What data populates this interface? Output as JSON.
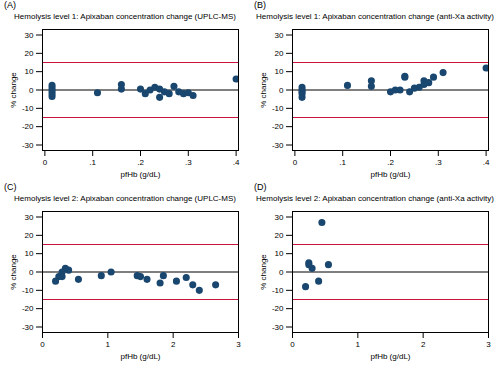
{
  "chart_data": [
    {
      "type": "scatter",
      "panel": "(A)",
      "title": "Hemolysis level 1: Apixaban concentration change (UPLC-MS)",
      "x_label": "pfHb (g/dL)",
      "y_label": "% change",
      "xlim": [
        -0.005,
        0.405
      ],
      "xticks": [
        0,
        {
          "value": 0.1,
          "label": ".1"
        },
        {
          "value": 0.2,
          "label": ".2"
        },
        {
          "value": 0.3,
          "label": ".3"
        },
        {
          "value": 0.4,
          "label": ".4"
        }
      ],
      "ylim": [
        -33,
        33
      ],
      "yticks": [
        -30,
        -20,
        -10,
        0,
        10,
        20,
        30
      ],
      "grid": false,
      "reference_lines": [
        {
          "value": 15,
          "color": "#c8143c"
        },
        {
          "value": -15,
          "color": "#c8143c"
        },
        {
          "value": 0,
          "color": "#000000"
        }
      ],
      "series": [
        {
          "name": "UPLC-MS",
          "color": "#1a476f",
          "marker": "circle",
          "x": [
            0.015,
            0.015,
            0.015,
            0.015,
            0.015,
            0.11,
            0.16,
            0.16,
            0.2,
            0.21,
            0.22,
            0.23,
            0.24,
            0.24,
            0.25,
            0.26,
            0.27,
            0.28,
            0.29,
            0.3,
            0.31,
            0.4
          ],
          "values": [
            2.5,
            1,
            -0.5,
            -2,
            -3.5,
            -1.5,
            3,
            0.5,
            0.5,
            -2,
            0,
            1.5,
            -4,
            0.5,
            -1,
            -2,
            2,
            -1,
            -2,
            -1.5,
            -3,
            6
          ]
        }
      ]
    },
    {
      "type": "scatter",
      "panel": "(B)",
      "title": "Hemolysis level 1: Apixaban concentration change (anti-Xa activity)",
      "x_label": "pfHb (g/dL)",
      "y_label": "% change",
      "xlim": [
        -0.005,
        0.405
      ],
      "xticks": [
        0,
        {
          "value": 0.1,
          "label": ".1"
        },
        {
          "value": 0.2,
          "label": ".2"
        },
        {
          "value": 0.3,
          "label": ".3"
        },
        {
          "value": 0.4,
          "label": ".4"
        }
      ],
      "ylim": [
        -33,
        33
      ],
      "yticks": [
        -30,
        -20,
        -10,
        0,
        10,
        20,
        30
      ],
      "grid": false,
      "reference_lines": [
        {
          "value": 15,
          "color": "#c8143c"
        },
        {
          "value": -15,
          "color": "#c8143c"
        },
        {
          "value": 0,
          "color": "#000000"
        }
      ],
      "series": [
        {
          "name": "anti-Xa activity",
          "color": "#1a476f",
          "marker": "circle",
          "x": [
            0.015,
            0.015,
            0.015,
            0.015,
            0.015,
            0.11,
            0.16,
            0.16,
            0.2,
            0.21,
            0.22,
            0.23,
            0.23,
            0.24,
            0.25,
            0.26,
            0.27,
            0.27,
            0.28,
            0.29,
            0.31,
            0.4
          ],
          "values": [
            1.5,
            0,
            -1,
            -2,
            -4,
            2.5,
            2,
            5,
            -1,
            0,
            0,
            7,
            7.5,
            -1,
            1,
            1.5,
            3,
            5,
            4,
            7,
            9.5,
            12
          ]
        }
      ]
    },
    {
      "type": "scatter",
      "panel": "(C)",
      "title": "Hemolysis level 2: Apixaban concentration change (UPLC-MS)",
      "x_label": "pfHb (g/dL)",
      "y_label": "% change",
      "xlim": [
        0,
        3
      ],
      "xticks": [
        0,
        1,
        2,
        3
      ],
      "ylim": [
        -33,
        33
      ],
      "yticks": [
        -30,
        -20,
        -10,
        0,
        10,
        20,
        30
      ],
      "grid": false,
      "reference_lines": [
        {
          "value": 15,
          "color": "#c8143c"
        },
        {
          "value": -15,
          "color": "#c8143c"
        },
        {
          "value": 0,
          "color": "#000000"
        }
      ],
      "series": [
        {
          "name": "UPLC-MS",
          "color": "#1a476f",
          "marker": "circle",
          "x": [
            0.2,
            0.25,
            0.3,
            0.3,
            0.35,
            0.4,
            0.55,
            0.9,
            1.05,
            1.45,
            1.5,
            1.6,
            1.8,
            1.85,
            2.05,
            2.2,
            2.3,
            2.4,
            2.65
          ],
          "values": [
            -5,
            -2.5,
            -2.5,
            0,
            2,
            1,
            -4,
            -2,
            0,
            -2,
            -2.5,
            -4,
            -6,
            -2,
            -5,
            -3,
            -7,
            -10,
            -7
          ]
        }
      ]
    },
    {
      "type": "scatter",
      "panel": "(D)",
      "title": "Hemolysis level 2: Apixaban concentration change (anti-Xa activity)",
      "x_label": "pfHb (g/dL)",
      "y_label": "% change",
      "xlim": [
        0,
        3
      ],
      "xticks": [
        0,
        1,
        2,
        3
      ],
      "ylim": [
        -33,
        33
      ],
      "yticks": [
        -30,
        -20,
        -10,
        0,
        10,
        20,
        30
      ],
      "grid": false,
      "reference_lines": [
        {
          "value": 15,
          "color": "#c8143c"
        },
        {
          "value": -15,
          "color": "#c8143c"
        },
        {
          "value": 0,
          "color": "#000000"
        }
      ],
      "series": [
        {
          "name": "anti-Xa activity",
          "color": "#1a476f",
          "marker": "circle",
          "x": [
            0.2,
            0.25,
            0.25,
            0.3,
            0.4,
            0.45,
            0.55
          ],
          "values": [
            -8,
            5,
            4,
            2,
            -5,
            27,
            4
          ]
        }
      ]
    }
  ]
}
